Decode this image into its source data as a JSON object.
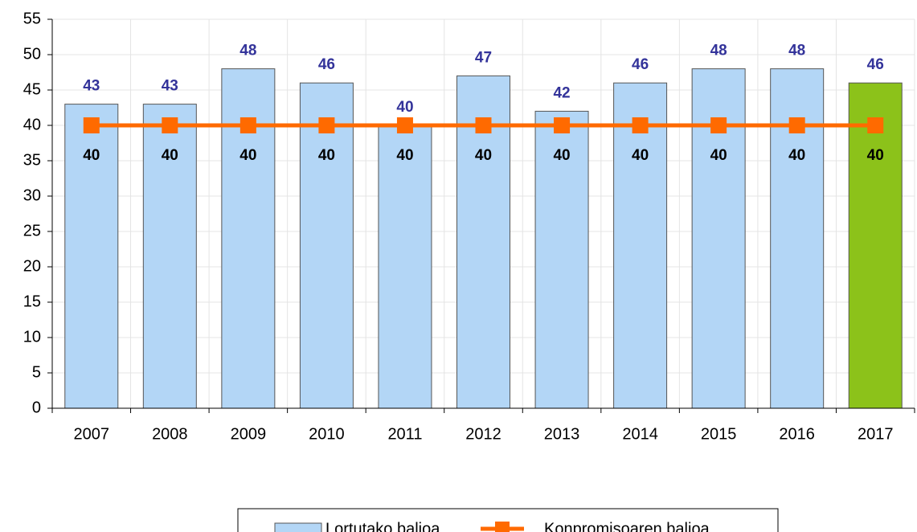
{
  "chart_data": {
    "type": "bar_line",
    "categories": [
      "2007",
      "2008",
      "2009",
      "2010",
      "2011",
      "2012",
      "2013",
      "2014",
      "2015",
      "2016",
      "2017"
    ],
    "series": [
      {
        "name": "Lortutako balioa",
        "type": "bar",
        "color": "#b3d6f6",
        "colors": [
          "#b3d6f6",
          "#b3d6f6",
          "#b3d6f6",
          "#b3d6f6",
          "#b3d6f6",
          "#b3d6f6",
          "#b3d6f6",
          "#b3d6f6",
          "#b3d6f6",
          "#b3d6f6",
          "#8cc21a"
        ],
        "values": [
          43,
          43,
          48,
          46,
          40,
          47,
          42,
          46,
          48,
          48,
          46
        ]
      },
      {
        "name": "Konpromisoaren balioa",
        "type": "line",
        "color": "#ff6a00",
        "values": [
          40,
          40,
          40,
          40,
          40,
          40,
          40,
          40,
          40,
          40,
          40
        ]
      }
    ],
    "ylim": [
      0,
      55
    ],
    "yticks": [
      0,
      5,
      10,
      15,
      20,
      25,
      30,
      35,
      40,
      45,
      50,
      55
    ],
    "grid": true,
    "legend": "bottom"
  }
}
